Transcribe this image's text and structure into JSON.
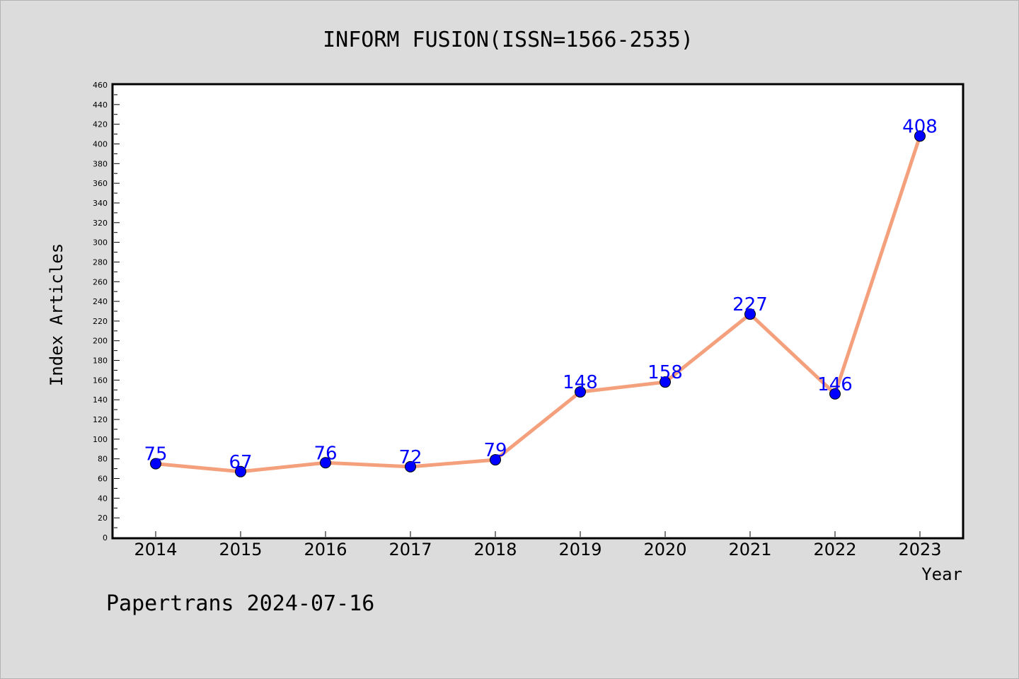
{
  "chart_data": {
    "type": "line",
    "title": "INFORM FUSION(ISSN=1566-2535)",
    "xlabel": "Year",
    "ylabel": "Index Articles",
    "categories": [
      "2014",
      "2015",
      "2016",
      "2017",
      "2018",
      "2019",
      "2020",
      "2021",
      "2022",
      "2023"
    ],
    "values": [
      75,
      67,
      76,
      72,
      79,
      148,
      158,
      227,
      146,
      408
    ],
    "ylim": [
      0,
      460
    ],
    "ytick_step": 20,
    "grid": false,
    "data_labels": true,
    "colors": {
      "line": "#f4a07c",
      "marker": "#0000ff",
      "label": "#0000ff"
    }
  },
  "footer": {
    "text": "Papertrans 2024-07-16"
  }
}
